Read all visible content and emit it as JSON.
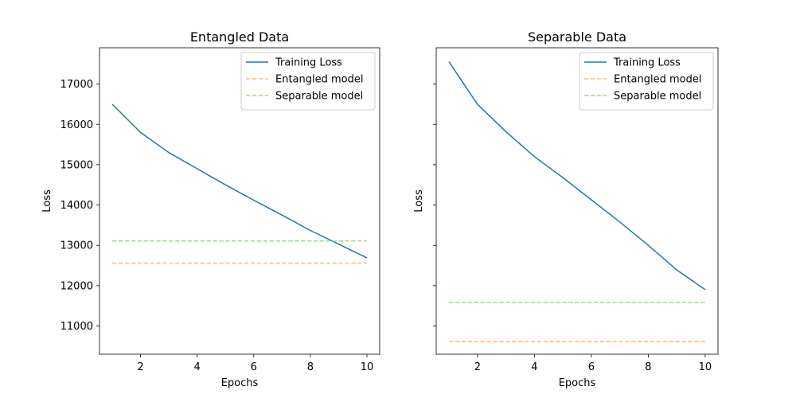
{
  "chart_data": [
    {
      "type": "line",
      "title": "Entangled Data",
      "xlabel": "Epochs",
      "ylabel": "Loss",
      "xlim": [
        0.55,
        10.45
      ],
      "ylim": [
        10300,
        17900
      ],
      "xticks": [
        2,
        4,
        6,
        8,
        10
      ],
      "yticks": [
        11000,
        12000,
        13000,
        14000,
        15000,
        16000,
        17000
      ],
      "show_ytick_labels": true,
      "grid": false,
      "legend": "top-right",
      "series": [
        {
          "name": "Training Loss",
          "style": "solid",
          "color": "#1f77b4",
          "x": [
            1,
            2,
            3,
            4,
            5,
            6,
            7,
            8,
            9,
            10
          ],
          "y": [
            16500,
            15800,
            15300,
            14900,
            14500,
            14120,
            13750,
            13370,
            13030,
            12690
          ]
        },
        {
          "name": "Entangled model",
          "style": "dashed",
          "color": "#ffbb78",
          "x": [
            1,
            10
          ],
          "y": [
            12560,
            12560
          ]
        },
        {
          "name": "Separable model",
          "style": "dashed",
          "color": "#98df8a",
          "x": [
            1,
            10
          ],
          "y": [
            13110,
            13110
          ]
        }
      ]
    },
    {
      "type": "line",
      "title": "Separable Data",
      "xlabel": "Epochs",
      "ylabel": "Loss",
      "xlim": [
        0.55,
        10.45
      ],
      "ylim": [
        10300,
        17900
      ],
      "xticks": [
        2,
        4,
        6,
        8,
        10
      ],
      "yticks": [
        11000,
        12000,
        13000,
        14000,
        15000,
        16000,
        17000
      ],
      "show_ytick_labels": false,
      "grid": false,
      "legend": "top-right",
      "series": [
        {
          "name": "Training Loss",
          "style": "solid",
          "color": "#1f77b4",
          "x": [
            1,
            2,
            3,
            4,
            5,
            6,
            7,
            8,
            9,
            10
          ],
          "y": [
            17550,
            16500,
            15820,
            15200,
            14680,
            14130,
            13580,
            13000,
            12390,
            11900
          ]
        },
        {
          "name": "Entangled model",
          "style": "dashed",
          "color": "#ffbb78",
          "x": [
            1,
            10
          ],
          "y": [
            10610,
            10610
          ]
        },
        {
          "name": "Separable model",
          "style": "dashed",
          "color": "#98df8a",
          "x": [
            1,
            10
          ],
          "y": [
            11590,
            11590
          ]
        }
      ]
    }
  ]
}
